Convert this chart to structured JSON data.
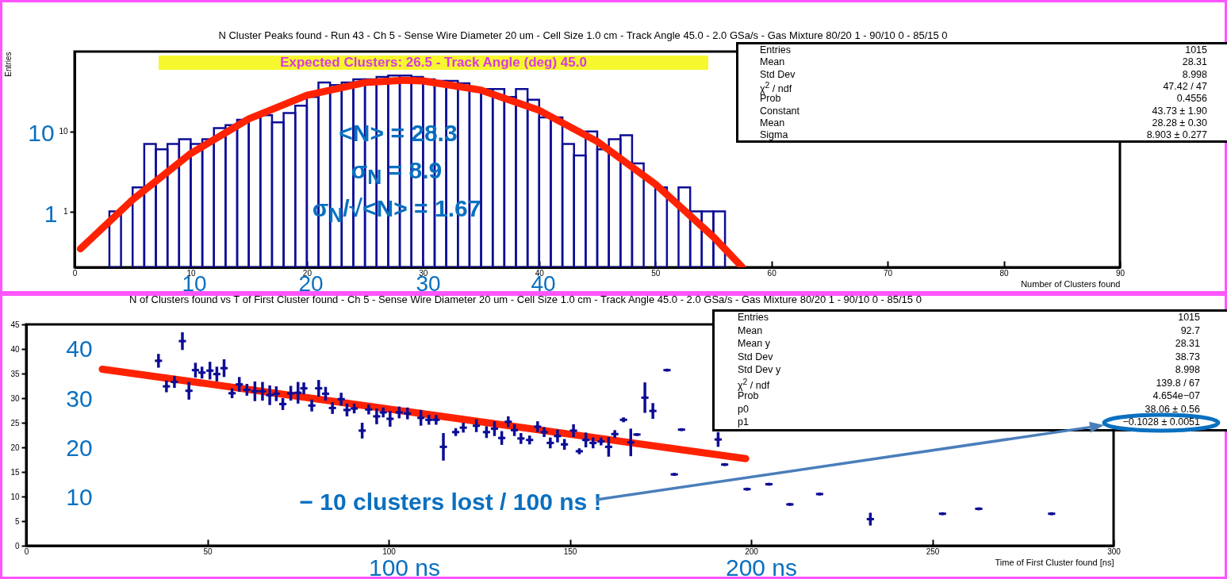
{
  "chart_data": [
    {
      "type": "histogram",
      "title": "N Cluster Peaks found - Run 43 - Ch 5 - Sense Wire Diameter 20 um - Cell Size 1.0 cm - Track Angle 45.0 - 2.0 GSa/s - Gas Mixture 80/20 1 - 90/10 0 - 85/15 0",
      "xlabel": "Number of Clusters found",
      "ylabel": "Entries",
      "color": "#0d0d96",
      "log": true,
      "xlim": [
        0,
        90
      ],
      "xticks": [
        0,
        10,
        20,
        30,
        40,
        50,
        60,
        70,
        80,
        90
      ],
      "ylim": [
        0.2,
        100
      ],
      "yticks": [
        1,
        10
      ],
      "bins": [
        0,
        1,
        2,
        3,
        4,
        5,
        6,
        7,
        8,
        9,
        10,
        11,
        12,
        13,
        14,
        15,
        16,
        17,
        18,
        19,
        20,
        21,
        22,
        23,
        24,
        25,
        26,
        27,
        28,
        29,
        30,
        31,
        32,
        33,
        34,
        35,
        36,
        37,
        38,
        39,
        40,
        41,
        42,
        43,
        44,
        45,
        46,
        47,
        48,
        49,
        50,
        51,
        52,
        53,
        54,
        55,
        56,
        57,
        58,
        59,
        60,
        61,
        62,
        63,
        64,
        65,
        66,
        67,
        68,
        69,
        70,
        71,
        72,
        73,
        74,
        75,
        76,
        77,
        78,
        79,
        80,
        81,
        82,
        83,
        84,
        85,
        86,
        87,
        88,
        89,
        90
      ],
      "values": [
        null,
        null,
        null,
        1,
        null,
        2,
        7,
        6,
        7,
        8,
        7,
        8,
        11,
        12,
        14,
        15,
        16,
        13,
        17,
        21,
        27,
        41,
        38,
        41,
        45,
        45,
        48,
        50,
        50,
        48,
        45,
        43,
        43,
        40,
        34,
        34,
        34,
        27,
        34,
        25,
        15,
        15,
        7,
        5,
        10,
        6,
        8,
        9,
        4,
        null,
        2,
        null,
        2,
        1,
        1,
        1,
        null,
        null,
        null,
        null,
        null,
        null,
        null,
        null,
        null,
        null,
        null,
        null,
        null,
        null,
        null,
        null,
        null,
        null,
        null,
        null,
        null,
        null,
        null,
        null,
        null,
        null,
        null,
        null,
        null,
        null,
        null,
        null,
        null,
        null
      ],
      "series": [
        {
          "type": "line",
          "color": "#ff2200",
          "x": [
            0.5,
            5,
            10,
            15,
            20,
            25,
            28.28,
            30,
            35,
            40,
            45,
            50,
            55,
            57.5
          ],
          "values": [
            0.34,
            1.4,
            5.3,
            14.4,
            28.4,
            40.9,
            43.7,
            42.9,
            32.9,
            18.4,
            7.5,
            2.2,
            0.48,
            0.2
          ]
        }
      ],
      "annotations": [
        "Expected Clusters: 26.5 - Track Angle (deg) 45.0",
        "<N> = 28.3",
        "σ$_{N}$ = 8.9",
        "σ$_{N}$/√<N> = 1.67",
        "10",
        "1",
        "10",
        "20",
        "30",
        "40",
        "Entries",
        "1015",
        "Mean",
        "28.31",
        "Std Dev",
        "8.998",
        "χ$^{2}$ / ndf",
        "47.42 / 47",
        "Prob",
        "0.4556",
        "Constant",
        "43.73 ± 1.90",
        "Mean",
        "28.28 ± 0.30",
        "Sigma",
        "8.903 ± 0.277"
      ]
    },
    {
      "type": "scatter",
      "title": "N of Clusters found vs T of First Cluster found - Ch 5 - Sense Wire Diameter 20 um - Cell Size 1.0 cm - Track Angle 45.0 - 2.0 GSa/s - Gas Mixture 80/20 1 - 90/10 0 - 85/15 0",
      "xlabel": "Time of First Cluster found [ns]",
      "xlim": [
        0,
        300
      ],
      "xticks": [
        0,
        50,
        100,
        150,
        200,
        250,
        300
      ],
      "ylim": [
        0,
        45
      ],
      "yticks": [
        0,
        5,
        10,
        15,
        20,
        25,
        30,
        35,
        40,
        45
      ],
      "marker": "square",
      "series": [
        {
          "type": "line",
          "color": "#ff2200",
          "marker": "none",
          "x": [
            21,
            198.5
          ],
          "values": [
            35.9,
            17.7
          ]
        },
        {
          "color": "#0d0d96",
          "x": [
            36.5,
            38.7,
            40.9,
            43.1,
            44.9,
            46.7,
            48.5,
            50.7,
            52.6,
            54.6,
            56.8,
            58.8,
            60.9,
            63.1,
            65.2,
            67.2,
            69.0,
            70.8,
            73.0,
            75.0,
            76.6,
            78.8,
            80.7,
            82.6,
            84.5,
            86.9,
            88.5,
            90.5,
            92.7,
            94.5,
            96.7,
            98.5,
            100.4,
            102.9,
            105.2,
            108.9,
            111.1,
            113.1,
            115.1,
            118.5,
            120.6,
            124.2,
            127.0,
            129.2,
            131.2,
            133.0,
            134.7,
            136.5,
            138.9,
            141.1,
            142.9,
            144.6,
            146.6,
            148.5,
            151.0,
            152.6,
            154.4,
            156.4,
            158.6,
            160.7,
            162.4,
            164.8,
            166.8,
            168.5,
            170.7,
            172.9,
            176.8,
            178.8,
            180.8,
            190.9,
            192.7,
            198.9,
            204.9,
            210.7,
            218.9,
            232.9,
            252.8,
            262.8,
            282.9
          ],
          "values": [
            37.6,
            32.4,
            33.3,
            41.6,
            31.5,
            35.7,
            35.2,
            35.6,
            34.9,
            36.1,
            31.0,
            32.8,
            31.7,
            31.4,
            31.4,
            30.6,
            30.9,
            28.8,
            31.0,
            31.1,
            32.0,
            28.5,
            32.0,
            30.9,
            28.0,
            29.8,
            27.6,
            27.9,
            23.4,
            27.7,
            26.3,
            27.1,
            25.8,
            27.1,
            26.9,
            26.0,
            25.6,
            25.6,
            20.1,
            23.1,
            24.0,
            24.4,
            23.1,
            23.8,
            21.9,
            25.2,
            23.5,
            21.8,
            21.5,
            24.2,
            23.1,
            20.9,
            22.3,
            20.6,
            23.4,
            19.2,
            21.5,
            20.9,
            21.2,
            20.1,
            22.7,
            25.6,
            21.0,
            22.6,
            30.1,
            27.4,
            35.7,
            14.5,
            23.6,
            21.6,
            16.5,
            11.5,
            12.5,
            8.4,
            10.5,
            5.4,
            6.5,
            7.5,
            6.5
          ],
          "errors": [
            1.4,
            1.2,
            1.2,
            1.8,
            1.8,
            1.5,
            1.2,
            1.8,
            1.5,
            1.8,
            1.0,
            1.5,
            1.2,
            2.0,
            1.9,
            2.0,
            1.5,
            1.2,
            1.5,
            2.2,
            1.2,
            1.2,
            1.7,
            1.4,
            1.2,
            1.3,
            1.3,
            1.0,
            1.6,
            1.0,
            1.6,
            1.0,
            1.6,
            1.2,
            1.2,
            1.6,
            1.0,
            1.0,
            2.8,
            0.8,
            1.0,
            1.3,
            1.2,
            1.5,
            1.4,
            1.1,
            1.2,
            1.1,
            0.9,
            1.1,
            1.0,
            1.1,
            1.3,
            1.1,
            1.3,
            0.6,
            1.5,
            1.1,
            0.8,
            2.0,
            0.8,
            0.5,
            2.8,
            null,
            3.1,
            1.6,
            null,
            null,
            null,
            1.5,
            null,
            null,
            null,
            null,
            null,
            1.3,
            null,
            null,
            null
          ],
          "xerrors": [
            1,
            1,
            1,
            1,
            1,
            1,
            1,
            1,
            1,
            1,
            1,
            1,
            1,
            1,
            1,
            1,
            1,
            1,
            1,
            1,
            1,
            1,
            1,
            1,
            1,
            1,
            1,
            1,
            1,
            1,
            1,
            1,
            1,
            1,
            1,
            1,
            1,
            1,
            1,
            1,
            1,
            1,
            1,
            1,
            1,
            1,
            1,
            1,
            1,
            1,
            1,
            1,
            1,
            1,
            1,
            1,
            1,
            1,
            1,
            1,
            1,
            1,
            1,
            1,
            1,
            1,
            1,
            1,
            1,
            1,
            1,
            1,
            1,
            1,
            1,
            1,
            1,
            1,
            1
          ]
        }
      ],
      "annotations": [
        "− 10 clusters lost / 100 ns !",
        "40",
        "30",
        "20",
        "10",
        "100 ns",
        "200 ns",
        "Entries",
        "1015",
        "Mean",
        "92.7",
        "Mean y",
        "28.31",
        "Std Dev",
        "38.73",
        "Std Dev y",
        "8.998",
        "χ$^{2}$ / ndf",
        "139.8 / 67",
        "Prob",
        "4.654e−07",
        "p0",
        "38.06 ± 0.56",
        "p1",
        "−0.1028 ± 0.0051"
      ]
    }
  ]
}
